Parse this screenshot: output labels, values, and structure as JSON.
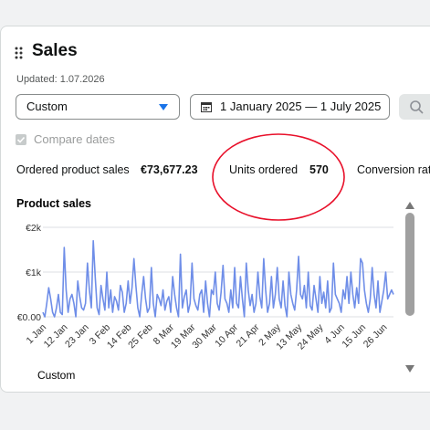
{
  "header": {
    "title": "Sales",
    "updated": "Updated: 1.07.2026"
  },
  "controls": {
    "range_select": "Custom",
    "date_range": "1 January 2025 — 1 July 2025",
    "compare_dates": "Compare dates"
  },
  "metrics": [
    {
      "label": "Ordered product sales",
      "value": "€73,677.23"
    },
    {
      "label": "Units ordered",
      "value": "570"
    },
    {
      "label": "Conversion rat"
    }
  ],
  "chart_data": {
    "type": "line",
    "title": "Product sales",
    "categories": [
      "1 Jan",
      null,
      null,
      null,
      null,
      null,
      null,
      null,
      null,
      null,
      null,
      "12 Jan",
      null,
      null,
      null,
      null,
      null,
      null,
      null,
      null,
      null,
      null,
      "23 Jan",
      null,
      null,
      null,
      null,
      null,
      null,
      null,
      null,
      null,
      null,
      "3 Feb",
      null,
      null,
      null,
      null,
      null,
      null,
      null,
      null,
      null,
      null,
      "14 Feb",
      null,
      null,
      null,
      null,
      null,
      null,
      null,
      null,
      null,
      null,
      "25 Feb",
      null,
      null,
      null,
      null,
      null,
      null,
      null,
      null,
      null,
      null,
      "8 Mar",
      null,
      null,
      null,
      null,
      null,
      null,
      null,
      null,
      null,
      null,
      "19 Mar",
      null,
      null,
      null,
      null,
      null,
      null,
      null,
      null,
      null,
      null,
      "30 Mar",
      null,
      null,
      null,
      null,
      null,
      null,
      null,
      null,
      null,
      null,
      "10 Apr",
      null,
      null,
      null,
      null,
      null,
      null,
      null,
      null,
      null,
      null,
      "21 Apr",
      null,
      null,
      null,
      null,
      null,
      null,
      null,
      null,
      null,
      null,
      "2 May",
      null,
      null,
      null,
      null,
      null,
      null,
      null,
      null,
      null,
      null,
      "13 May",
      null,
      null,
      null,
      null,
      null,
      null,
      null,
      null,
      null,
      null,
      "24 May",
      null,
      null,
      null,
      null,
      null,
      null,
      null,
      null,
      null,
      null,
      "4 Jun",
      null,
      null,
      null,
      null,
      null,
      null,
      null,
      null,
      null,
      null,
      "15 Jun",
      null,
      null,
      null,
      null,
      null,
      null,
      null,
      null,
      null,
      null,
      "26 Jun",
      null,
      null,
      null,
      null,
      null
    ],
    "series": [
      {
        "color": "#6f8ee8",
        "values": [
          100,
          0,
          300,
          650,
          400,
          100,
          0,
          200,
          500,
          100,
          50,
          1550,
          600,
          100,
          400,
          500,
          300,
          0,
          800,
          450,
          200,
          150,
          300,
          1200,
          600,
          200,
          1700,
          900,
          200,
          50,
          700,
          400,
          150,
          1000,
          200,
          600,
          100,
          450,
          350,
          150,
          700,
          550,
          100,
          300,
          800,
          300,
          650,
          1300,
          700,
          200,
          0,
          500,
          900,
          400,
          100,
          200,
          1100,
          300,
          0,
          500,
          400,
          250,
          600,
          150,
          350,
          450,
          100,
          900,
          500,
          200,
          0,
          1400,
          200,
          450,
          600,
          100,
          300,
          1200,
          400,
          250,
          150,
          500,
          600,
          100,
          800,
          300,
          0,
          600,
          500,
          1000,
          300,
          150,
          550,
          1150,
          400,
          300,
          100,
          600,
          200,
          1100,
          300,
          200,
          900,
          400,
          0,
          1200,
          600,
          250,
          500,
          100,
          300,
          1000,
          450,
          200,
          1300,
          600,
          100,
          300,
          900,
          200,
          500,
          1100,
          400,
          200,
          800,
          250,
          0,
          1000,
          500,
          300,
          150,
          600,
          1350,
          500,
          400,
          700,
          200,
          1000,
          250,
          150,
          700,
          400,
          100,
          900,
          300,
          550,
          200,
          800,
          100,
          200,
          1200,
          500,
          400,
          300,
          100,
          600,
          400,
          900,
          300,
          1000,
          500,
          200,
          650,
          300,
          1300,
          1200,
          600,
          300,
          100,
          400,
          1100,
          500,
          200,
          800,
          100,
          350,
          600,
          1000,
          400,
          500,
          600,
          500
        ]
      }
    ],
    "ylim": [
      0,
      2000
    ],
    "yticks": [
      {
        "value": 0,
        "label": "€0.00"
      },
      {
        "value": 1000,
        "label": "€1k"
      },
      {
        "value": 2000,
        "label": "€2k"
      }
    ],
    "grid": true
  },
  "footer_select": "Custom"
}
